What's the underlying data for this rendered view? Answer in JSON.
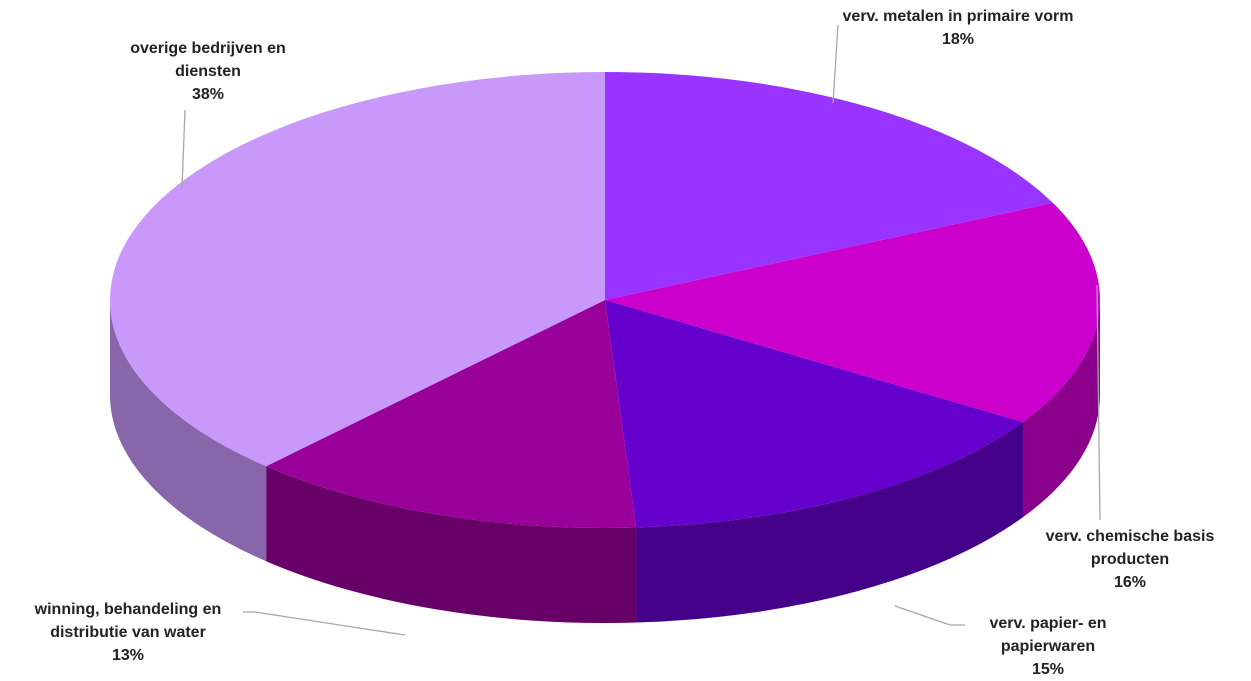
{
  "chart_data": {
    "type": "pie",
    "categories": [
      "verv. metalen in primaire vorm",
      "verv. chemische basis producten",
      "verv. papier- en papierwaren",
      "winning, behandeling en distributie van water",
      "overige bedrijven en diensten"
    ],
    "values": [
      18,
      16,
      15,
      13,
      38
    ],
    "value_labels": [
      "18%",
      "16%",
      "15%",
      "13%",
      "38%"
    ],
    "colors": [
      "#9933ff",
      "#cc00cc",
      "#6600cc",
      "#990099",
      "#c899fb"
    ]
  }
}
